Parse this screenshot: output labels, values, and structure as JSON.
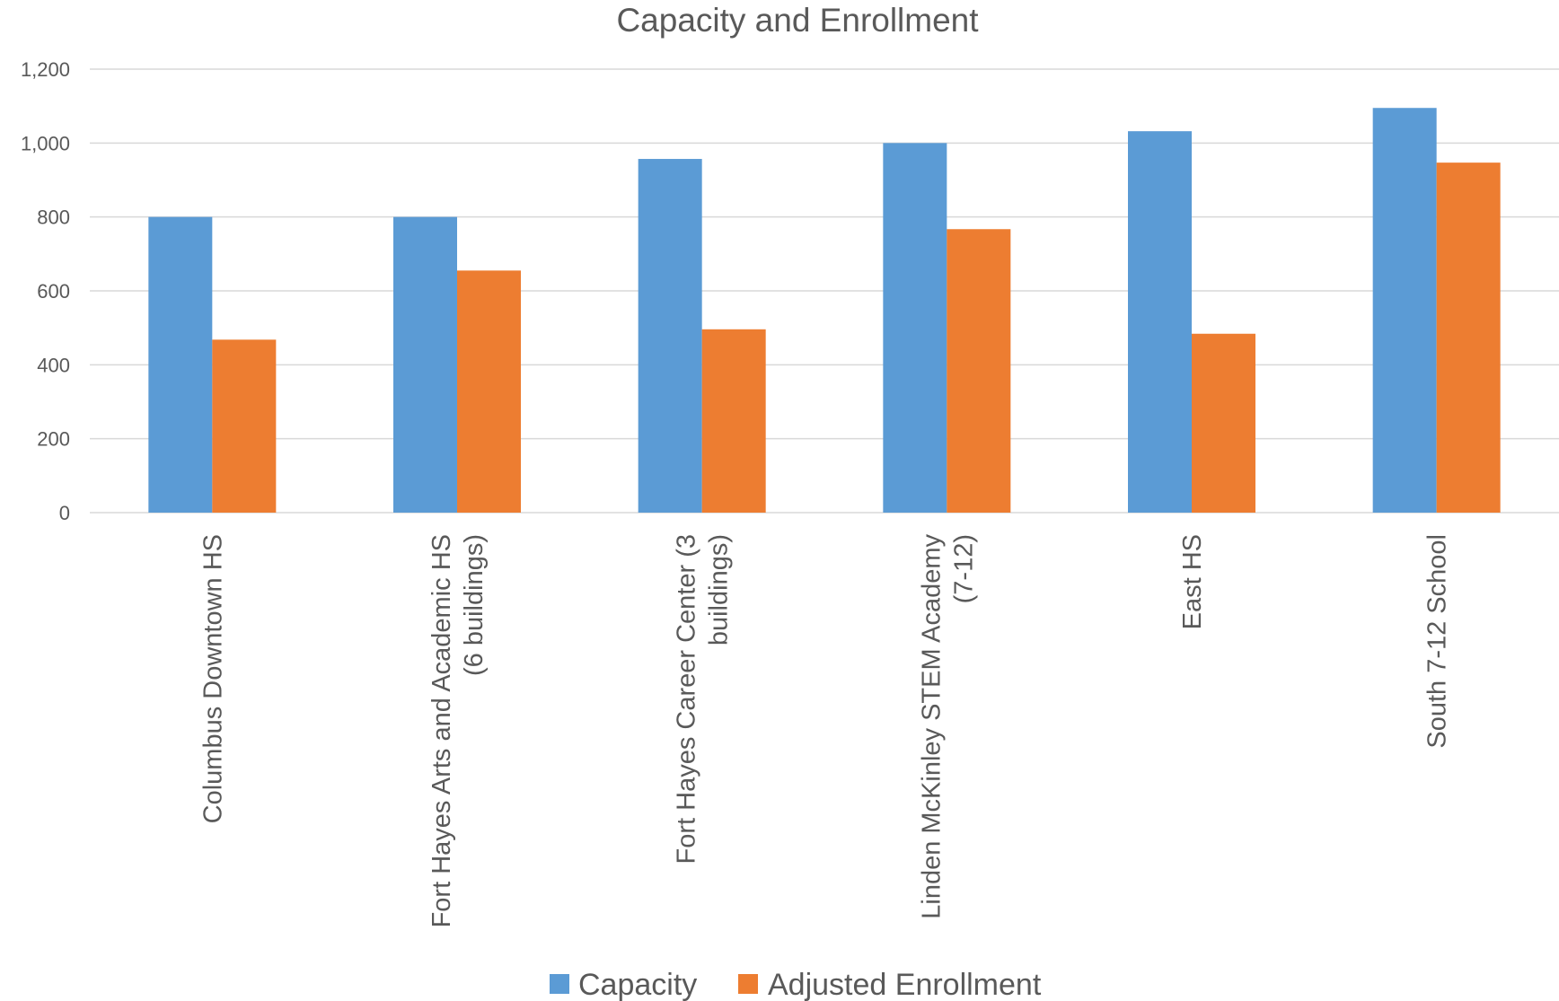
{
  "chart_data": {
    "type": "bar",
    "title": "Capacity and Enrollment",
    "xlabel": "",
    "ylabel": "",
    "ylim": [
      0,
      1200
    ],
    "yticks": [
      0,
      200,
      400,
      600,
      800,
      1000,
      1200
    ],
    "ytick_labels": [
      "0",
      "200",
      "400",
      "600",
      "800",
      "1,000",
      "1,200"
    ],
    "grid": true,
    "legend_position": "bottom",
    "categories": [
      [
        "Columbus Downtown HS"
      ],
      [
        "Fort Hayes Arts and Academic HS",
        "(6 buildings)"
      ],
      [
        "Fort Hayes Career Center  (3",
        "buildings)"
      ],
      [
        "Linden McKinley STEM Academy",
        "(7-12)"
      ],
      [
        "East HS"
      ],
      [
        "South 7-12 School"
      ]
    ],
    "series": [
      {
        "name": "Capacity",
        "color": "#5b9bd5",
        "values": [
          800,
          800,
          957,
          1000,
          1032,
          1095
        ]
      },
      {
        "name": "Adjusted Enrollment",
        "color": "#ed7d31",
        "values": [
          468,
          655,
          496,
          767,
          484,
          947
        ]
      }
    ]
  }
}
